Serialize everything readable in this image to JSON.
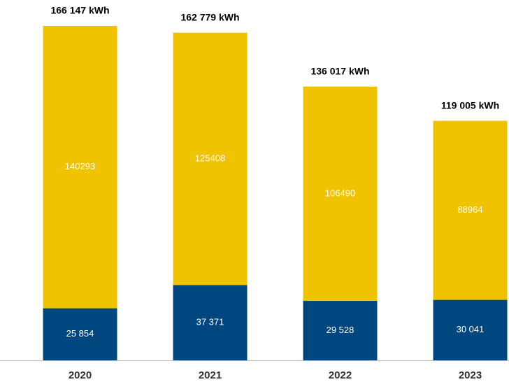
{
  "chart_data": {
    "type": "stacked_bar",
    "categories": [
      "2020",
      "2021",
      "2022",
      "2023"
    ],
    "series": [
      {
        "color": "#00467f",
        "values": [
          25854,
          37371,
          29528,
          30041
        ],
        "value_labels": [
          "25 854",
          "37 371",
          "29 528",
          "30 041"
        ]
      },
      {
        "color": "#f0c300",
        "values": [
          140293,
          125408,
          106490,
          88964
        ]
      }
    ],
    "total_labels": [
      "166 147 kWh",
      "162 779 kWh",
      "136 017 kWh",
      "119 005 kWh"
    ],
    "ylim": [
      0,
      179000
    ]
  }
}
